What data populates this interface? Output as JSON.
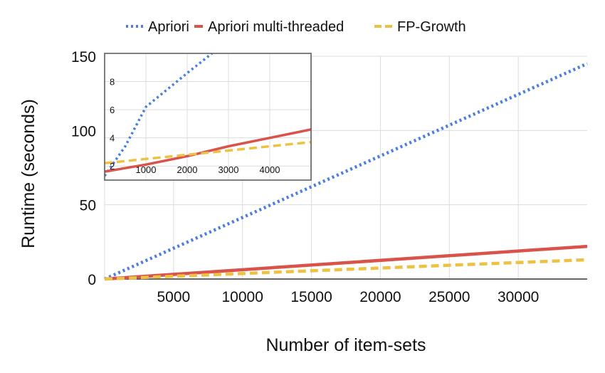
{
  "chart_data": [
    {
      "id": "main",
      "type": "line",
      "xlabel": "Number of item-sets",
      "ylabel": "Runtime (seconds)",
      "xlim": [
        0,
        35000
      ],
      "ylim": [
        0,
        150
      ],
      "xticks": [
        5000,
        10000,
        15000,
        20000,
        25000,
        30000
      ],
      "yticks": [
        0,
        50,
        100,
        150
      ],
      "grid": true,
      "legend_position": "top",
      "series": [
        {
          "name": "Apriori",
          "style": "dotted",
          "color": "#4a7fdc",
          "points": [
            [
              0,
              0
            ],
            [
              35000,
              145
            ]
          ]
        },
        {
          "name": "Apriori multi-threaded",
          "style": "solid",
          "color": "#d9534a",
          "points": [
            [
              0,
              0
            ],
            [
              35000,
              22
            ]
          ]
        },
        {
          "name": "FP-Growth",
          "style": "dashed",
          "color": "#edc243",
          "points": [
            [
              0,
              0
            ],
            [
              35000,
              13
            ]
          ]
        }
      ]
    },
    {
      "id": "inset",
      "type": "line",
      "xlim": [
        0,
        5000
      ],
      "ylim": [
        1,
        10
      ],
      "xticks": [
        1000,
        2000,
        3000,
        4000
      ],
      "yticks": [
        2,
        4,
        6,
        8
      ],
      "grid": true,
      "series": [
        {
          "name": "Apriori",
          "style": "dotted",
          "color": "#4a7fdc",
          "points": [
            [
              0,
              1.3
            ],
            [
              500,
              3.4
            ],
            [
              1000,
              6.2
            ],
            [
              2000,
              8.6
            ],
            [
              2600,
              10
            ]
          ]
        },
        {
          "name": "Apriori multi-threaded",
          "style": "solid",
          "color": "#d9534a",
          "points": [
            [
              0,
              1.6
            ],
            [
              1000,
              2.1
            ],
            [
              2000,
              2.7
            ],
            [
              3000,
              3.4
            ],
            [
              4000,
              4.0
            ],
            [
              5000,
              4.6
            ]
          ]
        },
        {
          "name": "FP-Growth",
          "style": "dashed",
          "color": "#edc243",
          "points": [
            [
              0,
              2.2
            ],
            [
              1000,
              2.5
            ],
            [
              2000,
              2.8
            ],
            [
              3000,
              3.1
            ],
            [
              4000,
              3.4
            ],
            [
              5000,
              3.7
            ]
          ]
        }
      ]
    }
  ]
}
